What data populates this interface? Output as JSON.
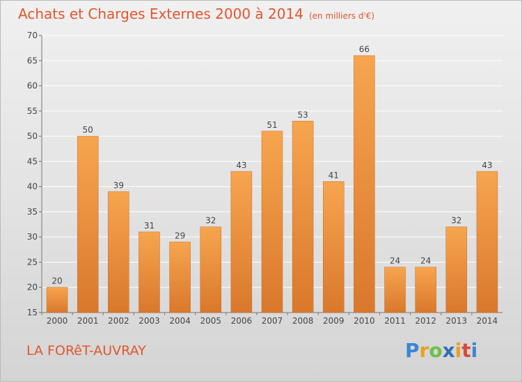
{
  "header": {
    "title": "Achats et Charges Externes 2000 à 2014",
    "unit": "(en milliers d'€)"
  },
  "footer": {
    "place": "LA FORêT-AUVRAY",
    "logo_letters": [
      "P",
      "r",
      "o",
      "x",
      "i",
      "t",
      "i"
    ]
  },
  "colors": {
    "bar_light": "#f7a54f",
    "bar_dark": "#d9782c",
    "title": "#e0562e",
    "grid": "#ffffff"
  },
  "chart_data": {
    "type": "bar",
    "title": "Achats et Charges Externes 2000 à 2014",
    "subtitle": "(en milliers d'€)",
    "categories": [
      "2000",
      "2001",
      "2002",
      "2003",
      "2004",
      "2005",
      "2006",
      "2007",
      "2008",
      "2009",
      "2010",
      "2011",
      "2012",
      "2013",
      "2014"
    ],
    "values": [
      20,
      50,
      39,
      31,
      29,
      32,
      43,
      51,
      53,
      41,
      66,
      24,
      24,
      32,
      43
    ],
    "ylim": [
      15,
      70
    ],
    "yticks": [
      15,
      20,
      25,
      30,
      35,
      40,
      45,
      50,
      55,
      60,
      65,
      70
    ],
    "grid": true,
    "legend": "none"
  }
}
